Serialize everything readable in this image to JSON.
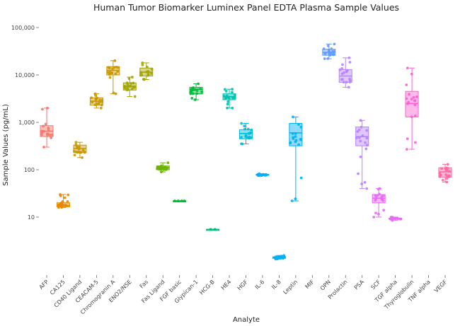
{
  "chart_data": {
    "type": "box",
    "title": "Human Tumor Biomarker Luminex Panel EDTA Plasma Sample Values",
    "xlabel": "Analyte",
    "ylabel": "Sample Values (pg/mL)",
    "y_scale": "log10",
    "ylim": [
      1,
      150000
    ],
    "y_ticks": [
      10,
      100,
      1000,
      10000,
      100000
    ],
    "y_tick_labels": [
      "10",
      "100",
      "1,000",
      "10,000",
      "100,000"
    ],
    "grid": false,
    "legend": "none",
    "categories": [
      "AFP",
      "CA125",
      "CD40 Ligand",
      "CEACAM-5",
      "Chromogranin A",
      "ENO2/NSE",
      "Fas",
      "Fas Ligand",
      "FGF basic",
      "Glypican-1",
      "HCG-B",
      "HE4",
      "HGF",
      "IL-6",
      "IL-8",
      "Leptin",
      "MIF",
      "OPN",
      "Prolactin",
      "PSA",
      "SCF",
      "TGF alpha",
      "Thyroglobulin",
      "TNF alpha",
      "VEGF"
    ],
    "colors": [
      "#F8766D",
      "#E58700",
      "#C99800",
      "#C99800",
      "#C99800",
      "#A3A500",
      "#A3A500",
      "#6BB100",
      "#00BA38",
      "#00BA38",
      "#00BF7D",
      "#00C0AF",
      "#00BCD8",
      "#00B0F6",
      "#00B0F6",
      "#00B0F6",
      "#619CFF",
      "#619CFF",
      "#B983FF",
      "#B983FF",
      "#E76BF3",
      "#E76BF3",
      "#FD61D1",
      "#FF67A4",
      "#FF67A4"
    ],
    "series": [
      {
        "category": "AFP",
        "min": 300,
        "q1": 500,
        "median": 650,
        "q3": 850,
        "max": 2000
      },
      {
        "category": "CA125",
        "min": 16,
        "q1": 16.5,
        "median": 17.5,
        "q3": 20,
        "max": 30
      },
      {
        "category": "CD40 Ligand",
        "min": 180,
        "q1": 230,
        "median": 280,
        "q3": 330,
        "max": 380
      },
      {
        "category": "CEACAM-5",
        "min": 2000,
        "q1": 2300,
        "median": 2800,
        "q3": 3300,
        "max": 4000
      },
      {
        "category": "Chromogranin A",
        "min": 4000,
        "q1": 10000,
        "median": 12500,
        "q3": 15000,
        "max": 20000
      },
      {
        "category": "ENO2/NSE",
        "min": 3500,
        "q1": 4800,
        "median": 5800,
        "q3": 6800,
        "max": 9000
      },
      {
        "category": "Fas",
        "min": 8000,
        "q1": 9500,
        "median": 11500,
        "q3": 14000,
        "max": 18000
      },
      {
        "category": "Fas Ligand",
        "min": 90,
        "q1": 100,
        "median": 110,
        "q3": 120,
        "max": 140
      },
      {
        "category": "FGF basic",
        "min": 22,
        "q1": 22,
        "median": 22,
        "q3": 22,
        "max": 22
      },
      {
        "category": "Glypican-1",
        "min": 3000,
        "q1": 4000,
        "median": 5000,
        "q3": 5500,
        "max": 6500
      },
      {
        "category": "HCG-B",
        "min": 5.5,
        "q1": 5.5,
        "median": 5.5,
        "q3": 5.5,
        "max": 5.5
      },
      {
        "category": "HE4",
        "min": 2000,
        "q1": 3000,
        "median": 3500,
        "q3": 4000,
        "max": 5000
      },
      {
        "category": "HGF",
        "min": 350,
        "q1": 450,
        "median": 580,
        "q3": 700,
        "max": 950
      },
      {
        "category": "IL-6",
        "min": 75,
        "q1": 76,
        "median": 78,
        "q3": 80,
        "max": 82
      },
      {
        "category": "IL-8",
        "min": 1.3,
        "q1": 1.35,
        "median": 1.4,
        "q3": 1.45,
        "max": 1.55
      },
      {
        "category": "Leptin",
        "min": 22,
        "q1": 320,
        "median": 600,
        "q3": 950,
        "max": 1300
      },
      {
        "category": "MIF",
        "min": null,
        "q1": null,
        "median": null,
        "q3": null,
        "max": null
      },
      {
        "category": "OPN",
        "min": 22000,
        "q1": 26000,
        "median": 30000,
        "q3": 35000,
        "max": 45000
      },
      {
        "category": "Prolactin",
        "min": 5500,
        "q1": 7000,
        "median": 9500,
        "q3": 13000,
        "max": 23000
      },
      {
        "category": "PSA",
        "min": 40,
        "q1": 320,
        "median": 500,
        "q3": 800,
        "max": 1100
      },
      {
        "category": "SCF",
        "min": 10,
        "q1": 20,
        "median": 25,
        "q3": 30,
        "max": 40
      },
      {
        "category": "TGF alpha",
        "min": 8.5,
        "q1": 9,
        "median": 9.2,
        "q3": 9.5,
        "max": 10
      },
      {
        "category": "Thyroglobulin",
        "min": 270,
        "q1": 1300,
        "median": 2500,
        "q3": 4500,
        "max": 14000
      },
      {
        "category": "TNF alpha",
        "min": null,
        "q1": null,
        "median": null,
        "q3": null,
        "max": null
      },
      {
        "category": "VEGF",
        "min": 55,
        "q1": 70,
        "median": 90,
        "q3": 110,
        "max": 130
      }
    ]
  }
}
